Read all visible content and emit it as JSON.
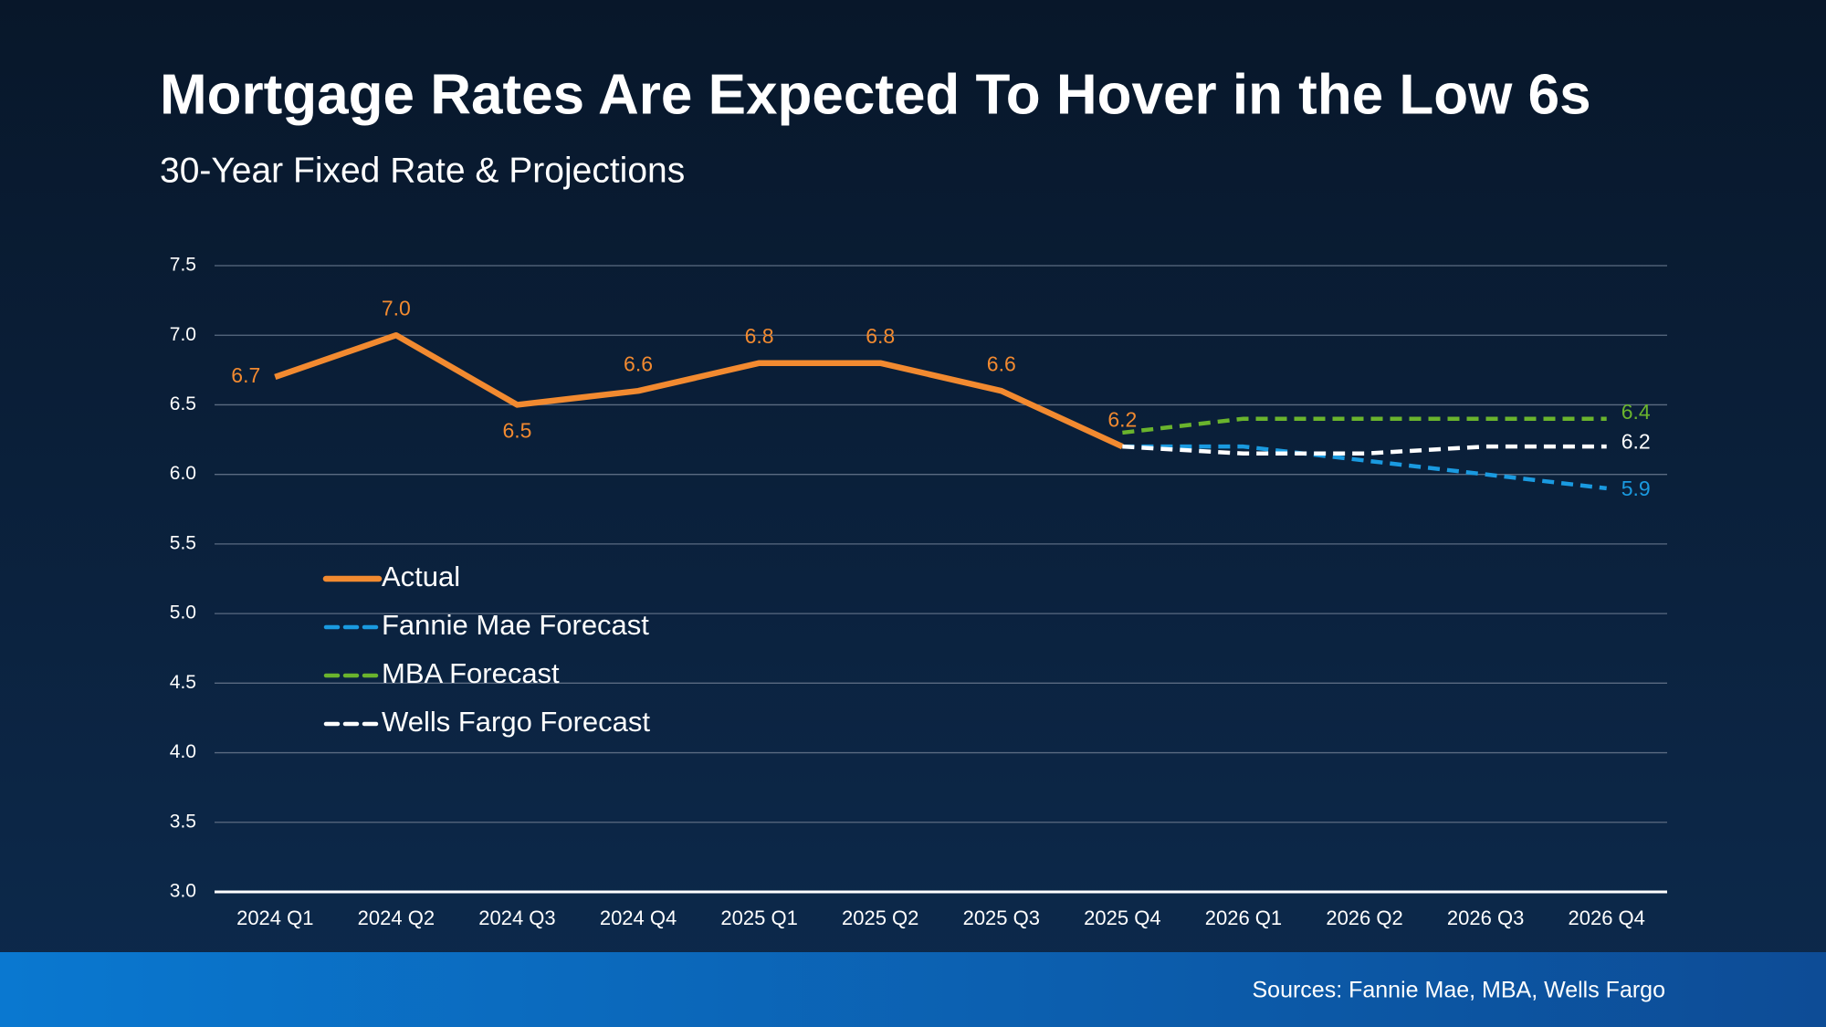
{
  "chart_data": {
    "type": "line",
    "title": "Mortgage Rates Are Expected To Hover in the Low 6s",
    "subtitle": "30-Year Fixed Rate & Projections",
    "source": "Sources: Fannie Mae, MBA, Wells Fargo",
    "categories": [
      "2024 Q1",
      "2024 Q2",
      "2024 Q3",
      "2024 Q4",
      "2025 Q1",
      "2025 Q2",
      "2025 Q3",
      "2025 Q4",
      "2026 Q1",
      "2026 Q2",
      "2026 Q3",
      "2026 Q4"
    ],
    "series": [
      {
        "name": "Actual",
        "color": "#f28a30",
        "dashed": false,
        "values": [
          6.7,
          7.0,
          6.5,
          6.6,
          6.8,
          6.8,
          6.6,
          6.2,
          null,
          null,
          null,
          null
        ],
        "value_labels": [
          "6.7",
          "7.0",
          "6.5",
          "6.6",
          "6.8",
          "6.8",
          "6.6",
          "6.2",
          null,
          null,
          null,
          null
        ]
      },
      {
        "name": "Fannie Mae Forecast",
        "color": "#1a9ae0",
        "dashed": true,
        "values": [
          null,
          null,
          null,
          null,
          null,
          null,
          null,
          6.2,
          6.2,
          6.1,
          6.0,
          5.9
        ],
        "value_labels": [
          null,
          null,
          null,
          null,
          null,
          null,
          null,
          null,
          null,
          null,
          null,
          "5.9"
        ]
      },
      {
        "name": "MBA Forecast",
        "color": "#6ab42d",
        "dashed": true,
        "values": [
          null,
          null,
          null,
          null,
          null,
          null,
          null,
          6.3,
          6.4,
          6.4,
          6.4,
          6.4
        ],
        "value_labels": [
          null,
          null,
          null,
          null,
          null,
          null,
          null,
          null,
          null,
          null,
          null,
          "6.4"
        ]
      },
      {
        "name": "Wells Fargo Forecast",
        "color": "#ffffff",
        "dashed": true,
        "values": [
          null,
          null,
          null,
          null,
          null,
          null,
          null,
          6.2,
          6.15,
          6.15,
          6.2,
          6.2
        ],
        "value_labels": [
          null,
          null,
          null,
          null,
          null,
          null,
          null,
          null,
          null,
          null,
          null,
          "6.2"
        ]
      }
    ],
    "ylim": [
      3.0,
      7.5
    ],
    "yticks": [
      {
        "value": 3,
        "label": "3.0"
      },
      3.5,
      {
        "value": 4,
        "label": "4.0"
      },
      4.5,
      {
        "value": 5,
        "label": "5.0"
      },
      5.5,
      {
        "value": 6,
        "label": "6.0"
      },
      6.5,
      {
        "value": 7,
        "label": "7.0"
      },
      7.5
    ],
    "grid": true,
    "legend_position": "center left"
  }
}
